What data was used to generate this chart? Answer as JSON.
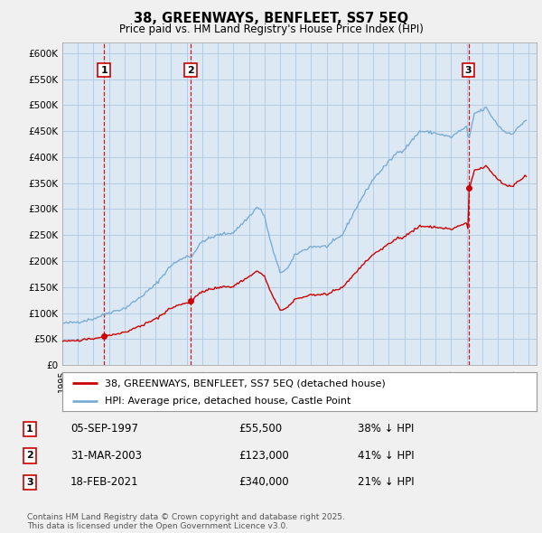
{
  "title": "38, GREENWAYS, BENFLEET, SS7 5EQ",
  "subtitle": "Price paid vs. HM Land Registry's House Price Index (HPI)",
  "background_color": "#f0f0f0",
  "plot_bg_color": "#dce9f5",
  "ylim": [
    0,
    620000
  ],
  "yticks": [
    0,
    50000,
    100000,
    150000,
    200000,
    250000,
    300000,
    350000,
    400000,
    450000,
    500000,
    550000,
    600000
  ],
  "ytick_labels": [
    "£0",
    "£50K",
    "£100K",
    "£150K",
    "£200K",
    "£250K",
    "£300K",
    "£350K",
    "£400K",
    "£450K",
    "£500K",
    "£550K",
    "£600K"
  ],
  "legend_line1": "38, GREENWAYS, BENFLEET, SS7 5EQ (detached house)",
  "legend_line2": "HPI: Average price, detached house, Castle Point",
  "sale_color": "#cc0000",
  "hpi_color": "#7aadd4",
  "annotation_border": "#cc0000",
  "footer_text": "Contains HM Land Registry data © Crown copyright and database right 2025.\nThis data is licensed under the Open Government Licence v3.0.",
  "transactions": [
    {
      "label": "1",
      "date": "05-SEP-1997",
      "price": 55500,
      "pct": "38%",
      "direction": "↓",
      "year": 1997.68
    },
    {
      "label": "2",
      "date": "31-MAR-2003",
      "price": 123000,
      "pct": "41%",
      "direction": "↓",
      "year": 2003.25
    },
    {
      "label": "3",
      "date": "18-FEB-2021",
      "price": 340000,
      "pct": "21%",
      "direction": "↓",
      "year": 2021.12
    }
  ],
  "xlim_start": 1995.0,
  "xlim_end": 2025.5
}
